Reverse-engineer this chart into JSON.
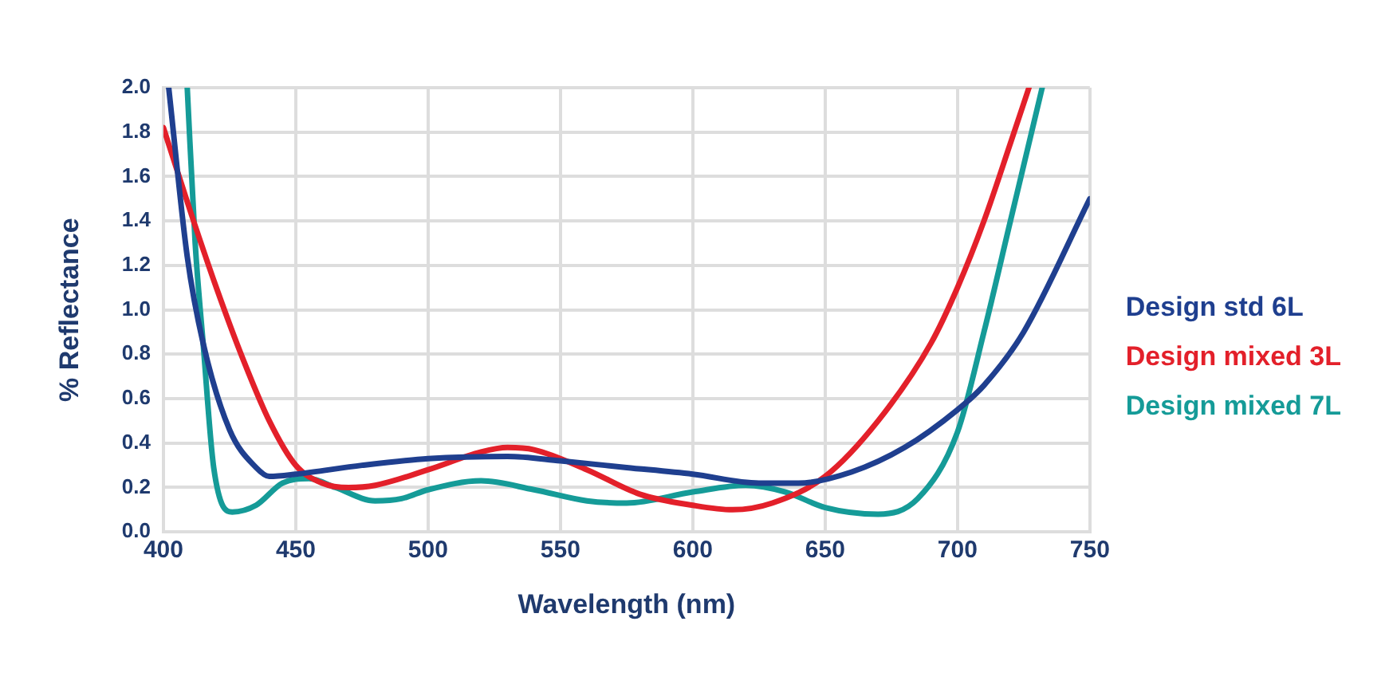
{
  "chart_data": {
    "type": "line",
    "xlabel": "Wavelength (nm)",
    "ylabel": "% Reflectance",
    "xlim": [
      400,
      750
    ],
    "xticks": [
      400,
      450,
      500,
      550,
      600,
      650,
      700,
      750
    ],
    "ylim": [
      0,
      2
    ],
    "yticks": [
      {
        "value": 0,
        "label": "0.0"
      },
      {
        "value": 0.2,
        "label": "0.2"
      },
      {
        "value": 0.4,
        "label": "0.4"
      },
      {
        "value": 0.6,
        "label": "0.6"
      },
      {
        "value": 0.8,
        "label": "0.8"
      },
      {
        "value": 1,
        "label": "1.0"
      },
      {
        "value": 1.2,
        "label": "1.2"
      },
      {
        "value": 1.4,
        "label": "1.4"
      },
      {
        "value": 1.6,
        "label": "1.6"
      },
      {
        "value": 1.8,
        "label": "1.8"
      },
      {
        "value": 2,
        "label": "2.0"
      }
    ],
    "grid": true,
    "legend": "right",
    "marker": "none",
    "line_style": "solid",
    "series": [
      {
        "name": "Design std 6L",
        "color": "#1f3f8f",
        "x": [
          402,
          409,
          415,
          425,
          435,
          440,
          450,
          475,
          500,
          530,
          550,
          575,
          600,
          625,
          640,
          660,
          680,
          700,
          710,
          725,
          750
        ],
        "values": [
          2.0,
          1.24,
          0.85,
          0.46,
          0.29,
          0.25,
          0.26,
          0.3,
          0.33,
          0.34,
          0.32,
          0.29,
          0.26,
          0.22,
          0.22,
          0.27,
          0.38,
          0.55,
          0.66,
          0.9,
          1.5
        ]
      },
      {
        "name": "Design mixed 3L",
        "color": "#e3202a",
        "x": [
          400,
          410,
          420,
          430,
          440,
          450,
          460,
          470,
          480,
          500,
          520,
          530,
          540,
          560,
          580,
          600,
          615,
          630,
          650,
          670,
          690,
          700,
          710,
          720,
          727
        ],
        "values": [
          1.82,
          1.45,
          1.1,
          0.78,
          0.5,
          0.3,
          0.22,
          0.2,
          0.21,
          0.28,
          0.36,
          0.38,
          0.37,
          0.28,
          0.17,
          0.12,
          0.1,
          0.13,
          0.25,
          0.5,
          0.85,
          1.1,
          1.4,
          1.75,
          2.0
        ]
      },
      {
        "name": "Design mixed 7L",
        "color": "#159b98",
        "x": [
          409,
          412,
          415,
          419,
          426,
          435,
          445,
          455,
          465,
          480,
          490,
          500,
          520,
          540,
          560,
          575,
          600,
          620,
          635,
          650,
          670,
          685,
          700,
          710,
          720,
          732
        ],
        "values": [
          2.0,
          1.3,
          0.85,
          0.29,
          0.09,
          0.12,
          0.22,
          0.24,
          0.2,
          0.14,
          0.15,
          0.19,
          0.23,
          0.19,
          0.14,
          0.13,
          0.18,
          0.21,
          0.18,
          0.11,
          0.08,
          0.15,
          0.45,
          0.9,
          1.4,
          2.0
        ]
      }
    ]
  }
}
